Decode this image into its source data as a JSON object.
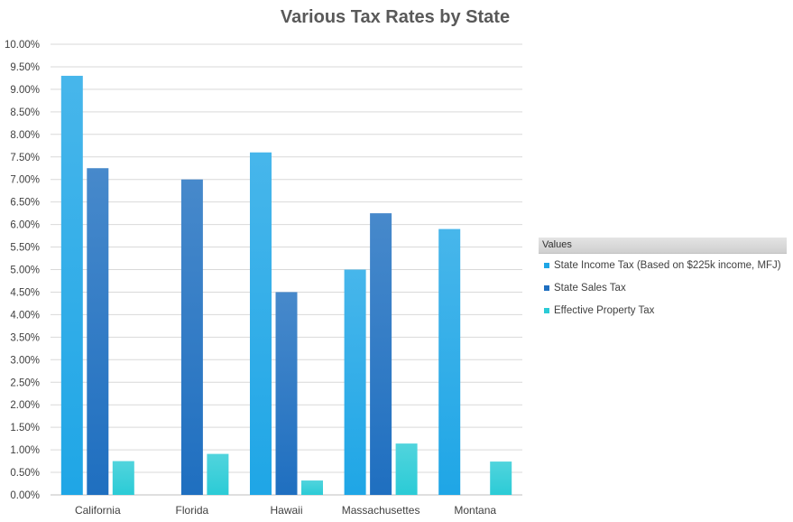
{
  "chart_data": {
    "type": "bar",
    "title": "Various Tax Rates by State",
    "xlabel": "",
    "ylabel": "",
    "ylim": [
      0,
      0.1
    ],
    "yticks": [
      "0.00%",
      "0.50%",
      "1.00%",
      "1.50%",
      "2.00%",
      "2.50%",
      "3.00%",
      "3.50%",
      "4.00%",
      "4.50%",
      "5.00%",
      "5.50%",
      "6.00%",
      "6.50%",
      "7.00%",
      "7.50%",
      "8.00%",
      "8.50%",
      "9.00%",
      "9.50%",
      "10.00%"
    ],
    "categories": [
      "California",
      "Florida",
      "Hawaii",
      "Massachusettes",
      "Montana"
    ],
    "series": [
      {
        "name": "State Income Tax (Based on $225k income, MFJ)",
        "values": [
          0.093,
          0,
          0.076,
          0.05,
          0.059
        ],
        "color": "#1fa6e6"
      },
      {
        "name": "State Sales Tax",
        "values": [
          0.0725,
          0.07,
          0.045,
          0.0625,
          0
        ],
        "color": "#1f6fc0"
      },
      {
        "name": "Effective Property Tax",
        "values": [
          0.0075,
          0.0091,
          0.0032,
          0.0114,
          0.0074
        ],
        "color": "#2bcbd6"
      }
    ],
    "grid": true,
    "legend_title": "Values",
    "legend_position": "right"
  }
}
